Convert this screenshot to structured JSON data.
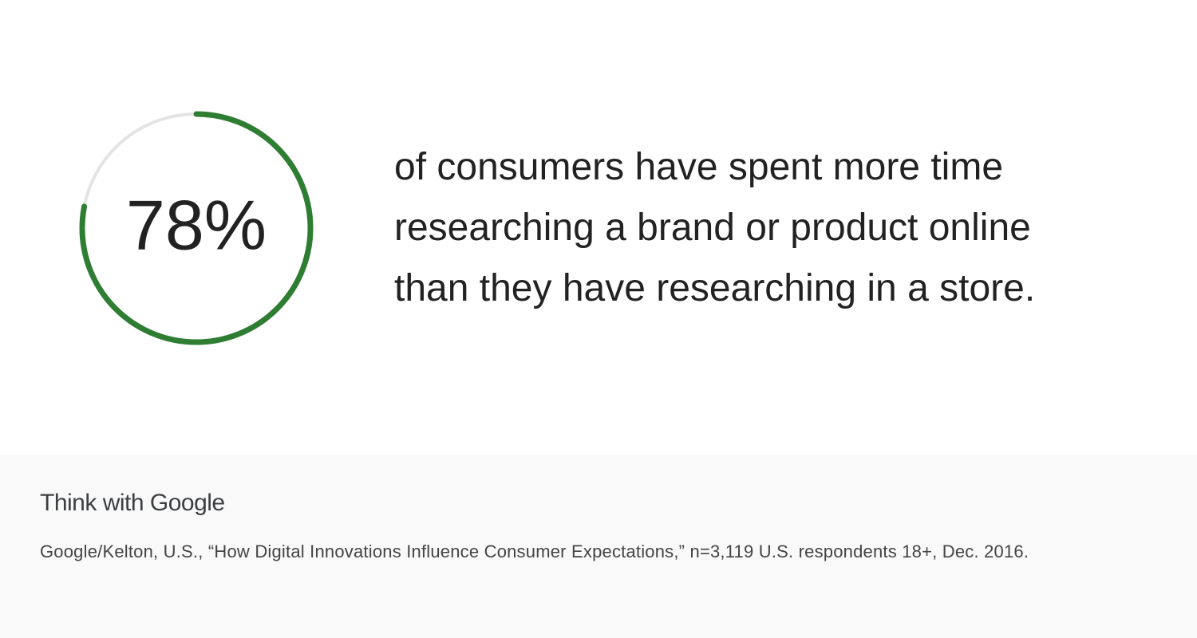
{
  "chart_data": {
    "type": "progress-ring",
    "values": [
      78
    ],
    "value_labels": [
      "78%"
    ],
    "ylim": [
      0,
      100
    ],
    "color": "#2e7d32",
    "track_color": "#e4e4e4",
    "description": "of consumers have spent more time researching a brand or product online than they have researching in a store."
  },
  "footer": {
    "brand": "Think with Google",
    "source": "Google/Kelton, U.S., “How Digital Innovations Influence Consumer Expectations,” n=3,119 U.S. respondents 18+, Dec. 2016."
  }
}
